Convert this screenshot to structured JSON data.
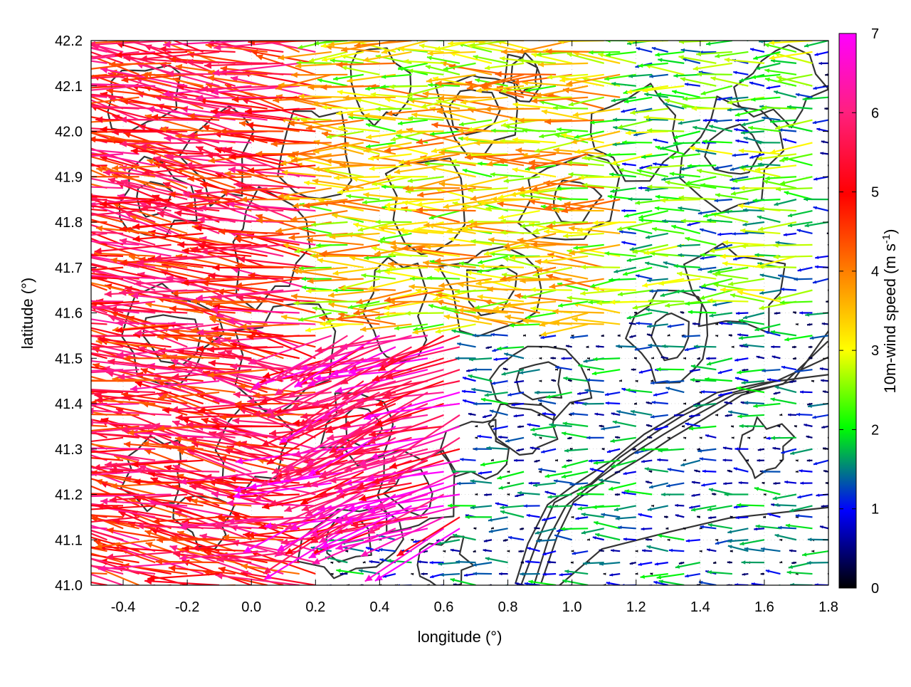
{
  "chart_data": {
    "type": "vector-field",
    "xlabel": "longitude (°)",
    "ylabel": "latitude (°)",
    "xlim": [
      -0.5,
      1.8
    ],
    "ylim": [
      41.0,
      42.2
    ],
    "x_ticks": [
      "-0.4",
      "-0.2",
      "0.0",
      "0.2",
      "0.4",
      "0.6",
      "0.8",
      "1.0",
      "1.2",
      "1.4",
      "1.6",
      "1.8"
    ],
    "y_ticks": [
      "41.0",
      "41.1",
      "41.2",
      "41.3",
      "41.4",
      "41.5",
      "41.6",
      "41.7",
      "41.8",
      "41.9",
      "42.0",
      "42.1",
      "42.2"
    ],
    "grid": true,
    "colorbar": {
      "label": "10m-wind speed (m s-1)",
      "label_main": "10m-wind speed (m s",
      "label_sup": "-1",
      "label_end": ")",
      "range": [
        0,
        7
      ],
      "ticks": [
        "0",
        "1",
        "2",
        "3",
        "4",
        "5",
        "6",
        "7"
      ],
      "colors": [
        "#000000",
        "#0000ff",
        "#00ff00",
        "#ffff00",
        "#ff8000",
        "#ff0000",
        "#ff00ff"
      ]
    },
    "vectors_description": "Wind vectors pointing predominantly westward; strongest (5-7 m/s) in western and south-central area, weak (0-2 m/s) in south-east lowland",
    "regions": [
      {
        "lon": [
          -0.5,
          0.2
        ],
        "lat": [
          41.0,
          42.2
        ],
        "speed": 5.2,
        "dir_deg": 188
      },
      {
        "lon": [
          0.2,
          0.7
        ],
        "lat": [
          41.1,
          41.55
        ],
        "speed": 6.0,
        "dir_deg": 160
      },
      {
        "lon": [
          0.2,
          1.2
        ],
        "lat": [
          41.55,
          42.2
        ],
        "speed": 3.2,
        "dir_deg": 180
      },
      {
        "lon": [
          0.9,
          1.8
        ],
        "lat": [
          41.6,
          42.2
        ],
        "speed": 2.0,
        "dir_deg": 180
      },
      {
        "lon": [
          0.8,
          1.8
        ],
        "lat": [
          41.0,
          41.55
        ],
        "speed": 0.9,
        "dir_deg": 180
      }
    ]
  }
}
